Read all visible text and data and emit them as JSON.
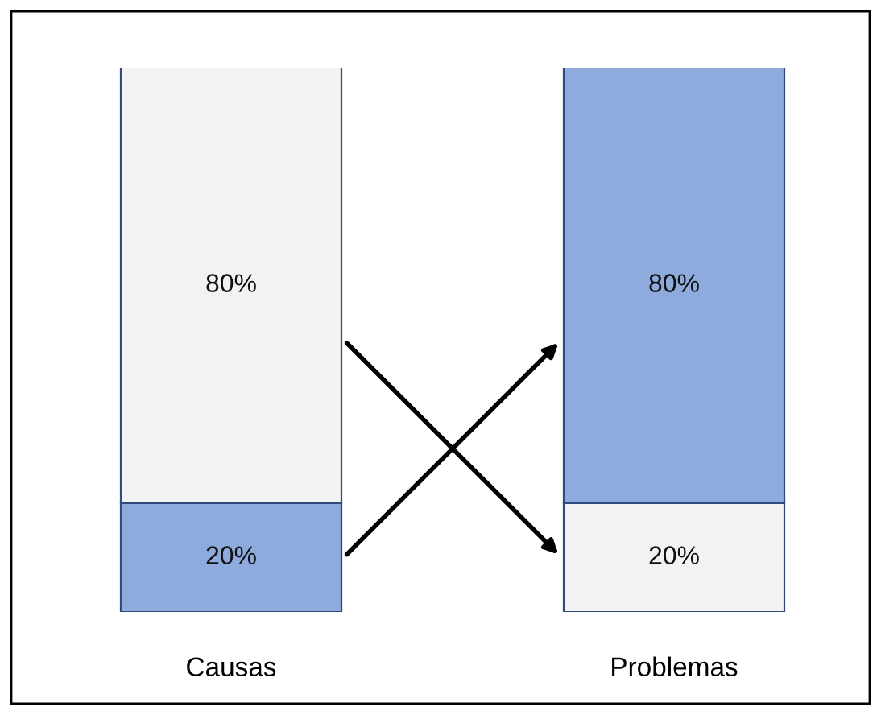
{
  "chart_data": {
    "type": "bar",
    "stacked": true,
    "categories": [
      "Causas",
      "Problemas"
    ],
    "series": [
      {
        "colors": [
          "#8faadc",
          "#f2f2f2"
        ],
        "values": [
          20,
          20
        ],
        "value_labels": [
          "20%",
          "20%"
        ]
      },
      {
        "colors": [
          "#f2f2f2",
          "#8faadc"
        ],
        "values": [
          80,
          80
        ],
        "value_labels": [
          "80%",
          "80%"
        ]
      }
    ],
    "ylim": [
      0,
      100
    ],
    "grid": false,
    "legend": false,
    "tick_labels": "x"
  }
}
